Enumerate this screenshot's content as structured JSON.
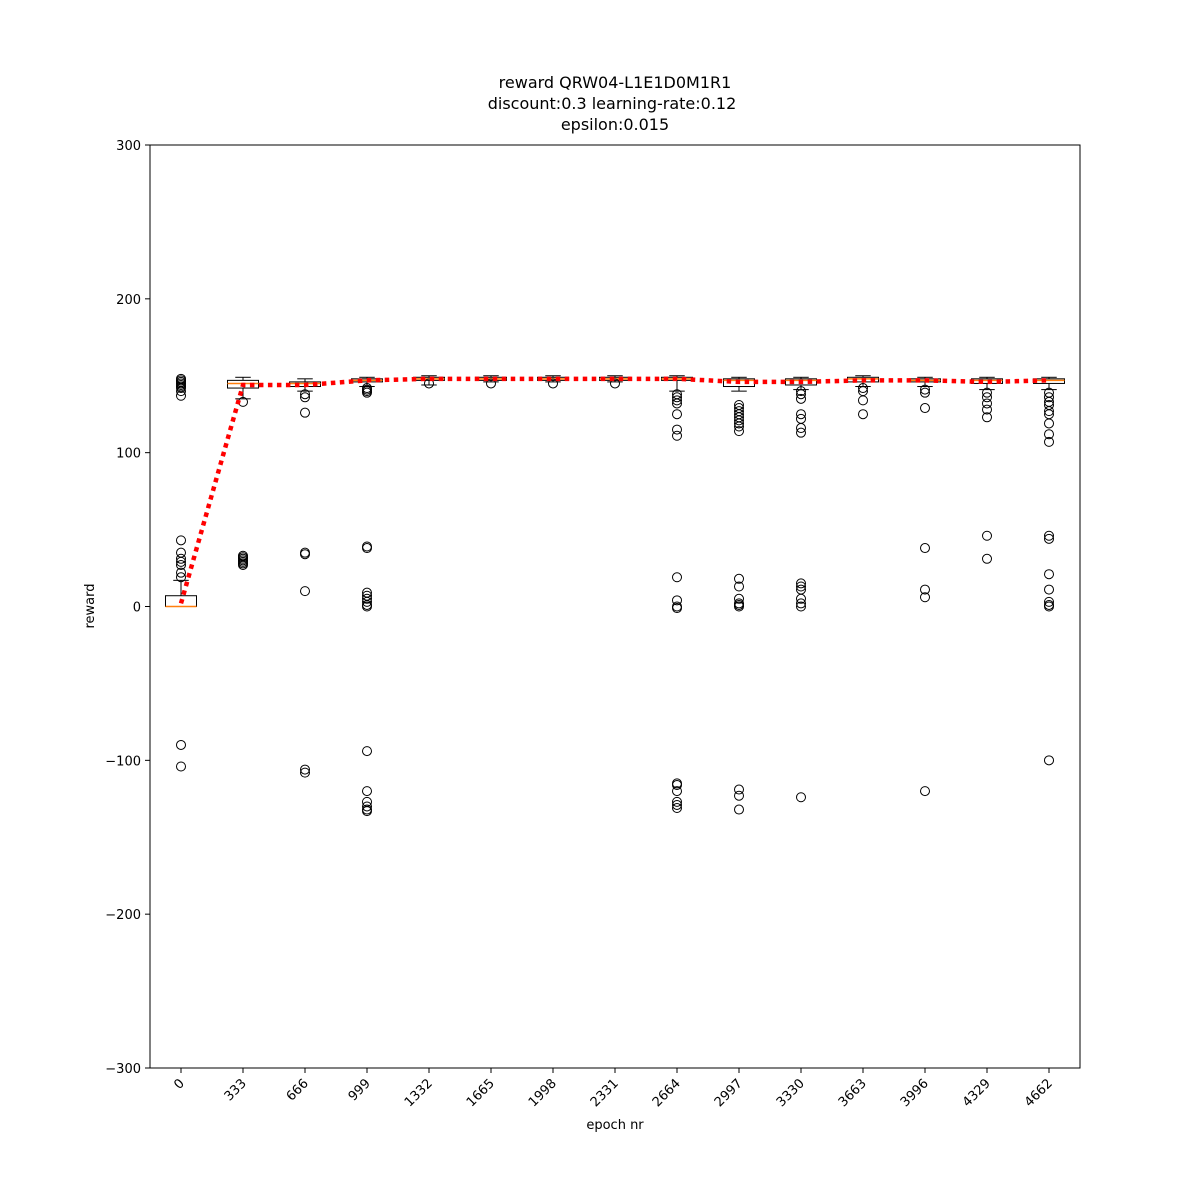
{
  "chart_data": {
    "type": "box",
    "title": [
      "reward QRW04-L1E1D0M1R1",
      "discount:0.3 learning-rate:0.12",
      "epsilon:0.015"
    ],
    "xlabel": "epoch nr",
    "ylabel": "reward",
    "categories": [
      "0",
      "333",
      "666",
      "999",
      "1332",
      "1665",
      "1998",
      "2331",
      "2664",
      "2997",
      "3330",
      "3663",
      "3996",
      "4329",
      "4662"
    ],
    "box_color": "#000000",
    "median_color": "#ff7f0e",
    "mean_color": "#ff0000",
    "boxes": [
      {
        "whislo": 0,
        "q1": 0,
        "med": 0,
        "q3": 7,
        "whishi": 17,
        "fliers": [
          43,
          35,
          31,
          29,
          27,
          22,
          19,
          148,
          147,
          146,
          145,
          144,
          143,
          142,
          140,
          137,
          -90,
          -104
        ]
      },
      {
        "whislo": 135,
        "q1": 142,
        "med": 145,
        "q3": 147,
        "whishi": 149,
        "fliers": [
          133,
          33,
          32,
          31,
          30,
          29,
          28,
          27
        ]
      },
      {
        "whislo": 140,
        "q1": 143,
        "med": 145,
        "q3": 146,
        "whishi": 148,
        "fliers": [
          138,
          136,
          126,
          35,
          34,
          10,
          -106,
          -108
        ]
      },
      {
        "whislo": 143,
        "q1": 146,
        "med": 147,
        "q3": 148,
        "whishi": 149,
        "fliers": [
          142,
          141,
          140,
          139,
          39,
          38,
          9,
          7,
          5,
          3,
          1,
          0,
          -94,
          -120,
          -127,
          -130,
          -132,
          -133
        ]
      },
      {
        "whislo": 144,
        "q1": 147,
        "med": 148,
        "q3": 149,
        "whishi": 150,
        "fliers": [
          145
        ]
      },
      {
        "whislo": 146,
        "q1": 147,
        "med": 148,
        "q3": 149,
        "whishi": 150,
        "fliers": [
          145
        ]
      },
      {
        "whislo": 146,
        "q1": 147,
        "med": 148,
        "q3": 149,
        "whishi": 150,
        "fliers": [
          145
        ]
      },
      {
        "whislo": 146,
        "q1": 147,
        "med": 148,
        "q3": 149,
        "whishi": 150,
        "fliers": [
          145
        ]
      },
      {
        "whislo": 140,
        "q1": 147,
        "med": 148,
        "q3": 149,
        "whishi": 150,
        "fliers": [
          138,
          136,
          134,
          132,
          125,
          115,
          111,
          19,
          4,
          0,
          -1,
          -115,
          -116,
          -120,
          -127,
          -129,
          -131
        ]
      },
      {
        "whislo": 140,
        "q1": 143,
        "med": 147,
        "q3": 148,
        "whishi": 149,
        "fliers": [
          131,
          129,
          127,
          125,
          123,
          121,
          119,
          117,
          114,
          18,
          13,
          5,
          2,
          1,
          0,
          -119,
          -123,
          -132
        ]
      },
      {
        "whislo": 141,
        "q1": 144,
        "med": 147,
        "q3": 148,
        "whishi": 149,
        "fliers": [
          140,
          138,
          135,
          125,
          122,
          116,
          113,
          15,
          13,
          11,
          5,
          2,
          0,
          -124
        ]
      },
      {
        "whislo": 143,
        "q1": 146,
        "med": 148,
        "q3": 149,
        "whishi": 150,
        "fliers": [
          142,
          140,
          134,
          125
        ]
      },
      {
        "whislo": 143,
        "q1": 146,
        "med": 147,
        "q3": 148,
        "whishi": 149,
        "fliers": [
          141,
          139,
          129,
          38,
          11,
          6,
          -120
        ]
      },
      {
        "whislo": 141,
        "q1": 145,
        "med": 147,
        "q3": 148,
        "whishi": 149,
        "fliers": [
          139,
          136,
          132,
          128,
          123,
          46,
          31
        ]
      },
      {
        "whislo": 141,
        "q1": 145,
        "med": 147,
        "q3": 148,
        "whishi": 149,
        "fliers": [
          139,
          136,
          133,
          131,
          127,
          125,
          119,
          112,
          107,
          46,
          44,
          21,
          11,
          3,
          1,
          0,
          -100
        ]
      }
    ],
    "means": [
      2,
      144,
      144,
      147,
      148,
      148,
      148,
      148,
      148,
      146,
      146,
      147,
      147,
      146,
      147
    ],
    "ylim": [
      -300,
      300
    ],
    "yticks": [
      {
        "value": -300,
        "label": "−300"
      },
      {
        "value": -200,
        "label": "−200"
      },
      {
        "value": -100,
        "label": "−100"
      },
      0,
      100,
      200,
      300
    ]
  }
}
